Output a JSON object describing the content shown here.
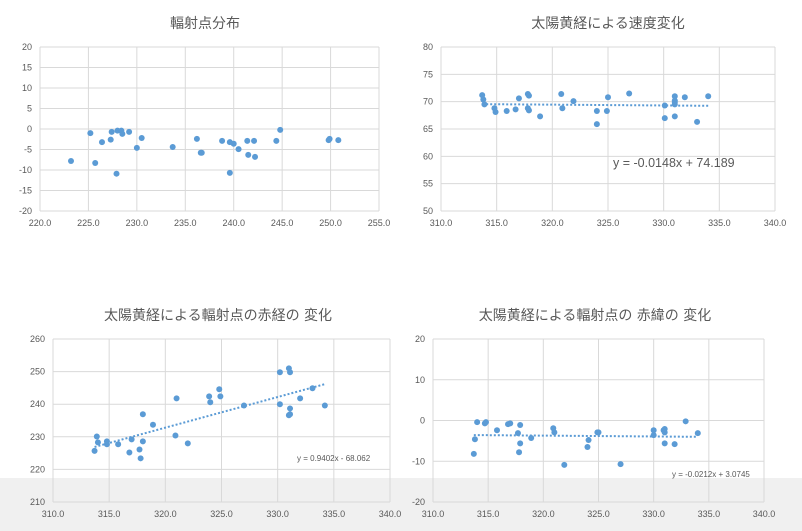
{
  "chart_data": [
    {
      "type": "scatter",
      "title": "輻射点分布",
      "xlim": [
        220,
        255
      ],
      "xstep": 5,
      "xdecimals": 1,
      "ylim": [
        -20,
        20
      ],
      "ystep": 5,
      "ydecimals": 0,
      "grid": true,
      "color": "#5b9bd5",
      "trendline": null,
      "points": [
        [
          223.2,
          -7.8
        ],
        [
          225.2,
          -1.0
        ],
        [
          225.7,
          -8.3
        ],
        [
          226.4,
          -3.2
        ],
        [
          227.3,
          -2.6
        ],
        [
          227.4,
          -0.7
        ],
        [
          227.9,
          -10.9
        ],
        [
          228.0,
          -0.4
        ],
        [
          228.4,
          -0.4
        ],
        [
          228.5,
          -1.2
        ],
        [
          229.2,
          -0.7
        ],
        [
          230.0,
          -4.6
        ],
        [
          230.5,
          -2.2
        ],
        [
          233.7,
          -4.4
        ],
        [
          236.2,
          -2.4
        ],
        [
          236.6,
          -5.8
        ],
        [
          236.7,
          -5.8
        ],
        [
          238.8,
          -2.9
        ],
        [
          239.6,
          -10.7
        ],
        [
          239.6,
          -3.2
        ],
        [
          240.0,
          -3.6
        ],
        [
          240.5,
          -4.9
        ],
        [
          241.4,
          -2.9
        ],
        [
          241.5,
          -6.3
        ],
        [
          242.1,
          -2.9
        ],
        [
          242.2,
          -6.8
        ],
        [
          244.4,
          -2.9
        ],
        [
          244.8,
          -0.2
        ],
        [
          249.8,
          -2.7
        ],
        [
          249.9,
          -2.4
        ],
        [
          250.8,
          -2.7
        ]
      ]
    },
    {
      "type": "scatter",
      "title": "太陽黄経による速度変化",
      "xlim": [
        310,
        340
      ],
      "xstep": 5,
      "xdecimals": 1,
      "ylim": [
        50,
        80
      ],
      "ystep": 5,
      "ydecimals": 0,
      "grid": true,
      "color": "#5b9bd5",
      "trendline": {
        "slope": -0.0148,
        "intercept": 74.189,
        "label": "y = -0.0148x + 74.189"
      },
      "points": [
        [
          313.7,
          71.2
        ],
        [
          313.8,
          70.4
        ],
        [
          313.9,
          69.5
        ],
        [
          314.8,
          68.8
        ],
        [
          314.9,
          68.1
        ],
        [
          315.9,
          68.3
        ],
        [
          316.7,
          68.6
        ],
        [
          317.0,
          70.6
        ],
        [
          317.8,
          68.8
        ],
        [
          317.8,
          71.4
        ],
        [
          317.9,
          71.1
        ],
        [
          317.9,
          68.4
        ],
        [
          318.9,
          67.3
        ],
        [
          320.8,
          71.4
        ],
        [
          320.9,
          68.8
        ],
        [
          321.9,
          70.1
        ],
        [
          324.0,
          68.3
        ],
        [
          324.0,
          65.9
        ],
        [
          324.9,
          68.3
        ],
        [
          325.0,
          70.8
        ],
        [
          326.9,
          71.5
        ],
        [
          330.1,
          69.3
        ],
        [
          330.1,
          67.0
        ],
        [
          331.0,
          70.2
        ],
        [
          331.0,
          71.0
        ],
        [
          331.0,
          69.9
        ],
        [
          331.0,
          69.5
        ],
        [
          331.0,
          67.3
        ],
        [
          331.9,
          70.8
        ],
        [
          333.0,
          66.3
        ],
        [
          334.0,
          71.0
        ]
      ]
    },
    {
      "type": "scatter",
      "title": "太陽黄経による輻射点の赤経の 変化",
      "xlim": [
        310,
        340
      ],
      "xstep": 5,
      "xdecimals": 1,
      "ylim": [
        210,
        260
      ],
      "ystep": 10,
      "ydecimals": 0,
      "grid": true,
      "color": "#5b9bd5",
      "trendline": {
        "slope": 0.9402,
        "intercept": -68.062,
        "label": "y = 0.9402x - 68.062"
      },
      "points": [
        [
          313.7,
          225.7
        ],
        [
          313.9,
          230.1
        ],
        [
          314.0,
          228.3
        ],
        [
          314.8,
          227.7
        ],
        [
          314.8,
          228.6
        ],
        [
          315.8,
          227.7
        ],
        [
          316.8,
          225.2
        ],
        [
          317.0,
          229.2
        ],
        [
          317.7,
          226.1
        ],
        [
          317.8,
          223.4
        ],
        [
          318.0,
          236.9
        ],
        [
          318.0,
          228.6
        ],
        [
          318.9,
          233.7
        ],
        [
          320.9,
          230.4
        ],
        [
          321.0,
          241.8
        ],
        [
          322.0,
          228.0
        ],
        [
          323.9,
          242.4
        ],
        [
          324.0,
          240.6
        ],
        [
          324.8,
          244.6
        ],
        [
          324.9,
          242.4
        ],
        [
          327.0,
          239.6
        ],
        [
          330.2,
          249.8
        ],
        [
          330.2,
          240.0
        ],
        [
          331.0,
          251.0
        ],
        [
          331.1,
          249.8
        ],
        [
          331.1,
          238.7
        ],
        [
          331.0,
          236.6
        ],
        [
          331.1,
          236.9
        ],
        [
          332.0,
          241.8
        ],
        [
          333.1,
          244.9
        ],
        [
          334.2,
          239.6
        ]
      ]
    },
    {
      "type": "scatter",
      "title": "太陽黄経による輻射点の 赤緯の 変化",
      "xlim": [
        310,
        340
      ],
      "xstep": 5,
      "xdecimals": 1,
      "ylim": [
        -20,
        20
      ],
      "ystep": 10,
      "ydecimals": 0,
      "grid": true,
      "color": "#5b9bd5",
      "trendline": {
        "slope": -0.0212,
        "intercept": 3.0745,
        "label": "y = -0.0212x + 3.0745"
      },
      "points": [
        [
          313.7,
          -8.2
        ],
        [
          313.8,
          -4.6
        ],
        [
          314.0,
          -0.4
        ],
        [
          314.7,
          -0.7
        ],
        [
          314.8,
          -0.4
        ],
        [
          315.8,
          -2.4
        ],
        [
          316.8,
          -0.9
        ],
        [
          317.0,
          -0.7
        ],
        [
          317.7,
          -3.1
        ],
        [
          317.8,
          -7.8
        ],
        [
          317.9,
          -1.1
        ],
        [
          317.9,
          -5.6
        ],
        [
          318.9,
          -4.3
        ],
        [
          320.9,
          -1.9
        ],
        [
          321.0,
          -2.9
        ],
        [
          321.9,
          -10.9
        ],
        [
          324.0,
          -6.5
        ],
        [
          324.1,
          -4.8
        ],
        [
          324.9,
          -2.9
        ],
        [
          325.0,
          -2.9
        ],
        [
          327.0,
          -10.7
        ],
        [
          330.0,
          -2.4
        ],
        [
          330.0,
          -3.6
        ],
        [
          330.9,
          -2.4
        ],
        [
          331.0,
          -2.1
        ],
        [
          331.0,
          -2.9
        ],
        [
          331.0,
          -5.6
        ],
        [
          331.9,
          -5.8
        ],
        [
          332.9,
          -0.2
        ],
        [
          334.0,
          -3.1
        ]
      ]
    }
  ]
}
